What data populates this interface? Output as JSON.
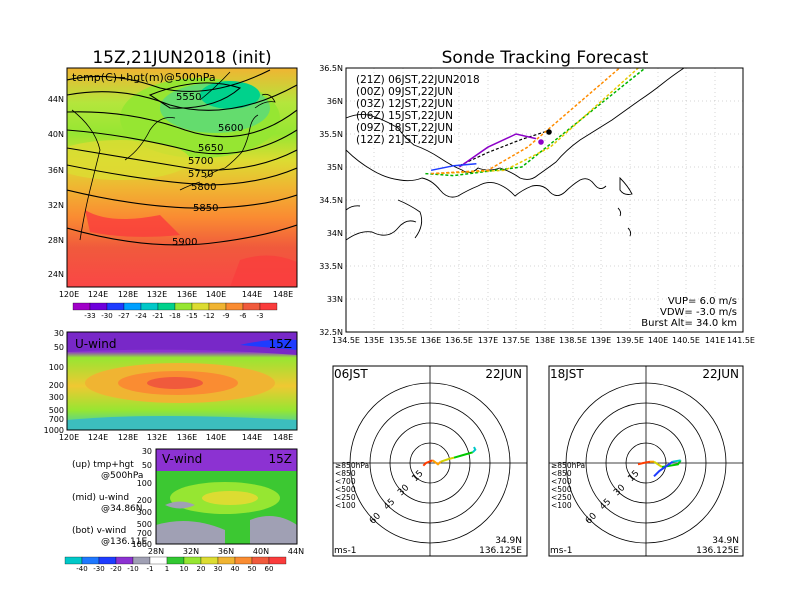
{
  "left": {
    "title": "15Z,21JUN2018 (init)",
    "map_label": "temp(C)+hgt(m)@500hPa",
    "lat_ticks": [
      "44N",
      "40N",
      "36N",
      "32N",
      "28N",
      "24N"
    ],
    "lon_ticks": [
      "120E",
      "124E",
      "128E",
      "132E",
      "136E",
      "140E",
      "144E",
      "148E"
    ],
    "contours": [
      "5550",
      "5600",
      "5650",
      "5700",
      "5750",
      "5800",
      "5850",
      "5900"
    ],
    "temp_cbar": [
      "-33",
      "-30",
      "-27",
      "-24",
      "-21",
      "-18",
      "-15",
      "-12",
      "-9",
      "-6",
      "-3"
    ],
    "temp_colors": [
      "#a000c8",
      "#6e00dc",
      "#1e3cff",
      "#00a0ff",
      "#00c8c8",
      "#00d28c",
      "#96e632",
      "#dcdc32",
      "#f0b432",
      "#fa8c32",
      "#f05a3c",
      "#fa3c3c"
    ],
    "u_label": "U-wind",
    "v_label": "V-wind",
    "time_label": "15Z",
    "p_ticks": [
      "30",
      "50",
      "100",
      "200",
      "300",
      "500",
      "700",
      "1000"
    ],
    "v_lat_ticks": [
      "28N",
      "32N",
      "36N",
      "40N",
      "44N"
    ],
    "wind_cbar": [
      "-40",
      "-30",
      "-20",
      "-10",
      "-1",
      "1",
      "10",
      "20",
      "30",
      "40",
      "50",
      "60"
    ],
    "notes": [
      {
        "a": "(up) tmp+hgt",
        "b": "@500hPa"
      },
      {
        "a": "(mid) u-wind",
        "b": "@34.86N"
      },
      {
        "a": "(bot) v-wind",
        "b": "@136.11E"
      }
    ]
  },
  "right": {
    "title": "Sonde Tracking Forecast",
    "legend": [
      {
        "label": "(21Z)  06JST,22JUN2018",
        "color": "#000000"
      },
      {
        "label": "(00Z)  09JST,22JUN",
        "color": "#8c00c8"
      },
      {
        "label": "(03Z)  12JST,22JUN",
        "color": "#1e3cff"
      },
      {
        "label": "(06Z)  15JST,22JUN",
        "color": "#00b400"
      },
      {
        "label": "(09Z)  18JST,22JUN",
        "color": "#e6c800"
      },
      {
        "label": "(12Z)  21JST,22JUN",
        "color": "#ff8c00"
      }
    ],
    "lat_ticks": [
      "36.5N",
      "36N",
      "35.5N",
      "35N",
      "34.5N",
      "34N",
      "33.5N",
      "33N",
      "32.5N"
    ],
    "lon_ticks": [
      "134.5E",
      "135E",
      "135.5E",
      "136E",
      "136.5E",
      "137E",
      "137.5E",
      "138E",
      "138.5E",
      "139E",
      "139.5E",
      "140E",
      "140.5E",
      "141E",
      "141.5E"
    ],
    "vup": "VUP=  6.0  m/s",
    "vdw": "VDW= -3.0  m/s",
    "burst": "Burst Alt=  34.0  km"
  },
  "hodographs": [
    {
      "time": "06JST",
      "date": "22JUN",
      "lat": "34.9N",
      "lon": "136.125E",
      "unit": "ms-1"
    },
    {
      "time": "18JST",
      "date": "22JUN",
      "lat": "34.9N",
      "lon": "136.125E",
      "unit": "ms-1"
    }
  ],
  "hodo_rings": [
    "15",
    "30",
    "45",
    "60"
  ],
  "hodo_levels": [
    {
      "label": "≥850hPa",
      "color": "#ff3c00"
    },
    {
      "label": "<850",
      "color": "#ffa000"
    },
    {
      "label": "<700",
      "color": "#d2d200"
    },
    {
      "label": "<500",
      "color": "#00c800"
    },
    {
      "label": "<250",
      "color": "#00c8c8"
    },
    {
      "label": "<100",
      "color": "#1e3cff"
    }
  ],
  "chart_data": [
    {
      "type": "heatmap",
      "title": "15Z,21JUN2018 (init)",
      "subtitle": "temp(C)+hgt(m)@500hPa",
      "xlim": [
        120,
        150
      ],
      "ylim": [
        22,
        48
      ],
      "contour_levels_m": [
        5550,
        5600,
        5650,
        5700,
        5750,
        5800,
        5850,
        5900
      ],
      "colorbar_C": [
        -33,
        -30,
        -27,
        -24,
        -21,
        -18,
        -15,
        -12,
        -9,
        -6,
        -3
      ]
    },
    {
      "type": "line",
      "title": "Sonde Tracking Forecast",
      "xlim": [
        134.5,
        141.5
      ],
      "ylim": [
        32.5,
        36.5
      ],
      "series": [
        {
          "name": "(21Z)  06JST,22JUN2018",
          "x": [
            136.5,
            137.0,
            137.6,
            138.07
          ],
          "y": [
            35.02,
            35.22,
            35.42,
            35.55
          ]
        },
        {
          "name": "(00Z)  09JST,22JUN",
          "x": [
            136.5,
            137.0,
            137.5,
            137.85
          ],
          "y": [
            35.0,
            35.3,
            35.5,
            35.43
          ]
        },
        {
          "name": "(03Z)  12JST,22JUN",
          "x": [
            136.0,
            136.4,
            136.8
          ],
          "y": [
            34.95,
            35.02,
            35.05
          ]
        },
        {
          "name": "(06Z)  15JST,22JUN",
          "x": [
            135.9,
            136.4,
            137.6,
            140.5
          ],
          "y": [
            34.9,
            34.87,
            35.0,
            37.0
          ]
        },
        {
          "name": "(09Z)  18JST,22JUN",
          "x": [
            136.1,
            137.3,
            138.1,
            140.3
          ],
          "y": [
            34.9,
            34.95,
            35.3,
            37.0
          ]
        },
        {
          "name": "(12Z)  21JST,22JUN",
          "x": [
            136.0,
            137.0,
            137.7,
            140.0
          ],
          "y": [
            34.9,
            34.95,
            35.3,
            37.0
          ]
        }
      ]
    },
    {
      "type": "line",
      "title": "06JST 22JUN",
      "xlabel": "ms-1",
      "series": [
        {
          "name": "≥850hPa",
          "x": [
            -5,
            -3,
            2
          ],
          "y": [
            -2,
            0,
            2
          ]
        },
        {
          "name": "<850",
          "x": [
            2,
            6,
            8
          ],
          "y": [
            2,
            -1,
            1
          ]
        },
        {
          "name": "<700",
          "x": [
            8,
            14,
            18
          ],
          "y": [
            1,
            3,
            4
          ]
        },
        {
          "name": "<500",
          "x": [
            18,
            25,
            32
          ],
          "y": [
            4,
            6,
            8
          ]
        },
        {
          "name": "<250",
          "x": [
            32,
            34,
            33
          ],
          "y": [
            8,
            10,
            12
          ]
        }
      ]
    },
    {
      "type": "line",
      "title": "18JST 22JUN",
      "xlabel": "ms-1",
      "series": [
        {
          "name": "≥850hPa",
          "x": [
            -6,
            -2,
            3
          ],
          "y": [
            -1,
            0,
            1
          ]
        },
        {
          "name": "<850",
          "x": [
            3,
            6
          ],
          "y": [
            1,
            1
          ]
        },
        {
          "name": "<700",
          "x": [
            6,
            12
          ],
          "y": [
            1,
            -3
          ]
        },
        {
          "name": "<500",
          "x": [
            12,
            24,
            26
          ],
          "y": [
            -3,
            -1,
            2
          ]
        },
        {
          "name": "<250",
          "x": [
            26,
            20
          ],
          "y": [
            2,
            1
          ]
        },
        {
          "name": "<100",
          "x": [
            20,
            10,
            6
          ],
          "y": [
            1,
            -6,
            -10
          ]
        }
      ]
    }
  ]
}
